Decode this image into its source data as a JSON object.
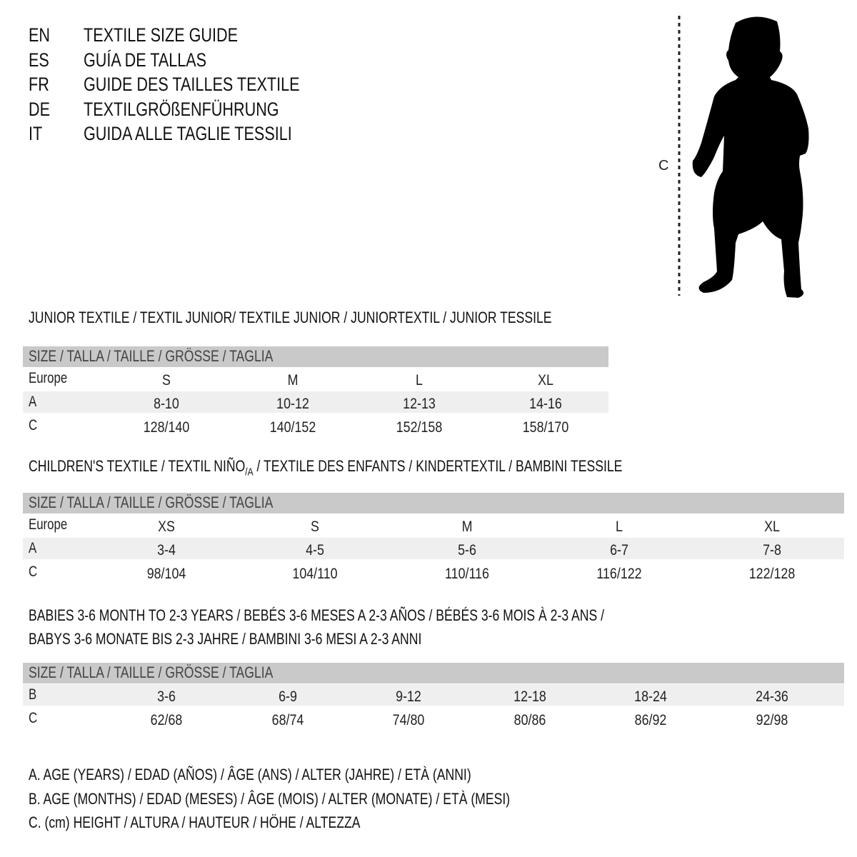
{
  "header": {
    "lines": [
      {
        "code": "EN",
        "text": "TEXTILE SIZE GUIDE"
      },
      {
        "code": "ES",
        "text": "GUÍA DE TALLAS"
      },
      {
        "code": "FR",
        "text": "GUIDE DES TAILLES TEXTILE"
      },
      {
        "code": "DE",
        "text": "TEXTILGRÖßENFÜHRUNG"
      },
      {
        "code": "IT",
        "text": "GUIDA ALLE TAGLIE TESSILI"
      }
    ]
  },
  "figure": {
    "measure_label": "C",
    "icon": "child-silhouette"
  },
  "size_header": "SIZE / TALLA / TAILLE / GRÖSSE / TAGLIA",
  "junior": {
    "title": "JUNIOR TEXTILE / TEXTIL JUNIOR/ TEXTILE JUNIOR / JUNIORTEXTIL / JUNIOR TESSILE",
    "rows": [
      {
        "label": "Europe",
        "values": [
          "S",
          "M",
          "L",
          "XL"
        ]
      },
      {
        "label": "A",
        "values": [
          "8-10",
          "10-12",
          "12-13",
          "14-16"
        ]
      },
      {
        "label": "C",
        "values": [
          "128/140",
          "140/152",
          "152/158",
          "158/170"
        ]
      }
    ]
  },
  "children": {
    "title_pre": "CHILDREN'S TEXTILE / TEXTIL NIÑO",
    "title_sub": "/A",
    "title_post": " / TEXTILE DES ENFANTS / KINDERTEXTIL / BAMBINI TESSILE",
    "rows": [
      {
        "label": "Europe",
        "values": [
          "XS",
          "S",
          "M",
          "L",
          "XL"
        ]
      },
      {
        "label": "A",
        "values": [
          "3-4",
          "4-5",
          "5-6",
          "6-7",
          "7-8"
        ]
      },
      {
        "label": "C",
        "values": [
          "98/104",
          "104/110",
          "110/116",
          "116/122",
          "122/128"
        ]
      }
    ]
  },
  "babies": {
    "title_line1": "BABIES 3-6 MONTH TO 2-3 YEARS / BEBÉS 3-6 MESES A 2-3 AÑOS / BÉBÉS 3-6 MOIS À 2-3 ANS /",
    "title_line2": "BABYS 3-6 MONATE BIS 2-3 JAHRE / BAMBINI 3-6 MESI A 2-3 ANNI",
    "rows": [
      {
        "label": "B",
        "values": [
          "3-6",
          "6-9",
          "9-12",
          "12-18",
          "18-24",
          "24-36"
        ]
      },
      {
        "label": "C",
        "values": [
          "62/68",
          "68/74",
          "74/80",
          "80/86",
          "86/92",
          "92/98"
        ]
      }
    ]
  },
  "legend": [
    "A. AGE (YEARS) / EDAD (AÑOS) / ÂGE (ANS) / ALTER (JAHRE) / ETÀ (ANNI)",
    "B. AGE (MONTHS) / EDAD (MESES) / ÂGE (MOIS) / ALTER (MONATE) / ETÀ (MESI)",
    "C. (cm) HEIGHT / ALTURA / HAUTEUR / HÖHE / ALTEZZA"
  ]
}
